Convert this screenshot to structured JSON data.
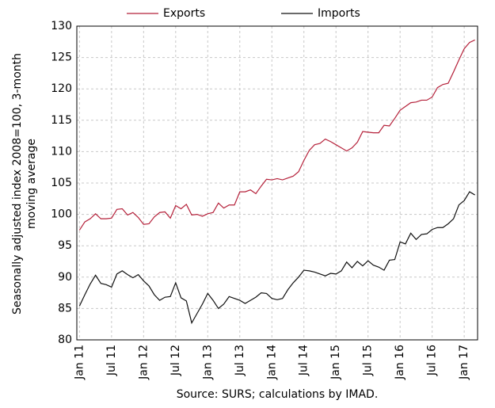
{
  "chart_data": {
    "type": "line",
    "ylabel": [
      "Seasonally adjusted index 2008=100, 3-month",
      "moving average"
    ],
    "note": "Source: SURS; calculations by IMAD.",
    "categories": [
      "Jan 11",
      null,
      null,
      null,
      null,
      null,
      "Jul 11",
      null,
      null,
      null,
      null,
      null,
      "Jan 12",
      null,
      null,
      null,
      null,
      null,
      "Jul 12",
      null,
      null,
      null,
      null,
      null,
      "Jan 13",
      null,
      null,
      null,
      null,
      null,
      "Jul 13",
      null,
      null,
      null,
      null,
      null,
      "Jan 14",
      null,
      null,
      null,
      null,
      null,
      "Jul 14",
      null,
      null,
      null,
      null,
      null,
      "Jan 15",
      null,
      null,
      null,
      null,
      null,
      "Jul 15",
      null,
      null,
      null,
      null,
      null,
      "Jan 16",
      null,
      null,
      null,
      null,
      null,
      "Jul 16",
      null,
      null,
      null,
      null,
      null,
      "Jan 17",
      null,
      null
    ],
    "series": [
      {
        "name": "Exports",
        "color": "#b5213a",
        "values": [
          97.5,
          98.8,
          99.3,
          100.1,
          99.3,
          99.3,
          99.4,
          100.8,
          100.9,
          99.9,
          100.3,
          99.5,
          98.4,
          98.5,
          99.6,
          100.3,
          100.4,
          99.4,
          101.4,
          100.9,
          101.6,
          99.9,
          100,
          99.7,
          100.1,
          100.3,
          101.8,
          101,
          101.5,
          101.5,
          103.6,
          103.6,
          103.9,
          103.3,
          104.5,
          105.6,
          105.5,
          105.7,
          105.5,
          105.8,
          106.1,
          106.8,
          108.6,
          110.2,
          111.1,
          111.3,
          112,
          111.6,
          111.1,
          110.6,
          110.1,
          110.6,
          111.5,
          113.2,
          113.1,
          113,
          113,
          114.2,
          114.1,
          115.3,
          116.6,
          117.2,
          117.8,
          117.9,
          118.2,
          118.2,
          118.7,
          120.2,
          120.7,
          120.9,
          122.7,
          124.6,
          126.4,
          127.4,
          127.8
        ]
      },
      {
        "name": "Imports",
        "color": "#111111",
        "values": [
          85.4,
          87.2,
          88.9,
          90.3,
          89,
          88.8,
          88.4,
          90.5,
          91,
          90.4,
          89.9,
          90.4,
          89.4,
          88.6,
          87.2,
          86.3,
          86.8,
          86.9,
          89.1,
          86.7,
          86.2,
          82.7,
          84.2,
          85.7,
          87.4,
          86.3,
          85,
          85.7,
          86.9,
          86.6,
          86.3,
          85.8,
          86.3,
          86.8,
          87.5,
          87.4,
          86.6,
          86.4,
          86.6,
          88,
          89.1,
          90,
          91.1,
          91,
          90.8,
          90.5,
          90.2,
          90.6,
          90.5,
          91,
          92.4,
          91.5,
          92.5,
          91.8,
          92.6,
          91.9,
          91.6,
          91.1,
          92.7,
          92.8,
          95.6,
          95.3,
          97,
          96,
          96.8,
          96.9,
          97.6,
          97.9,
          97.9,
          98.5,
          99.3,
          101.5,
          102.2,
          103.6,
          103.1
        ]
      }
    ],
    "ylim": [
      80,
      130
    ],
    "yticks": [
      80,
      85,
      90,
      95,
      100,
      105,
      110,
      115,
      120,
      125,
      130
    ],
    "grid": true
  }
}
